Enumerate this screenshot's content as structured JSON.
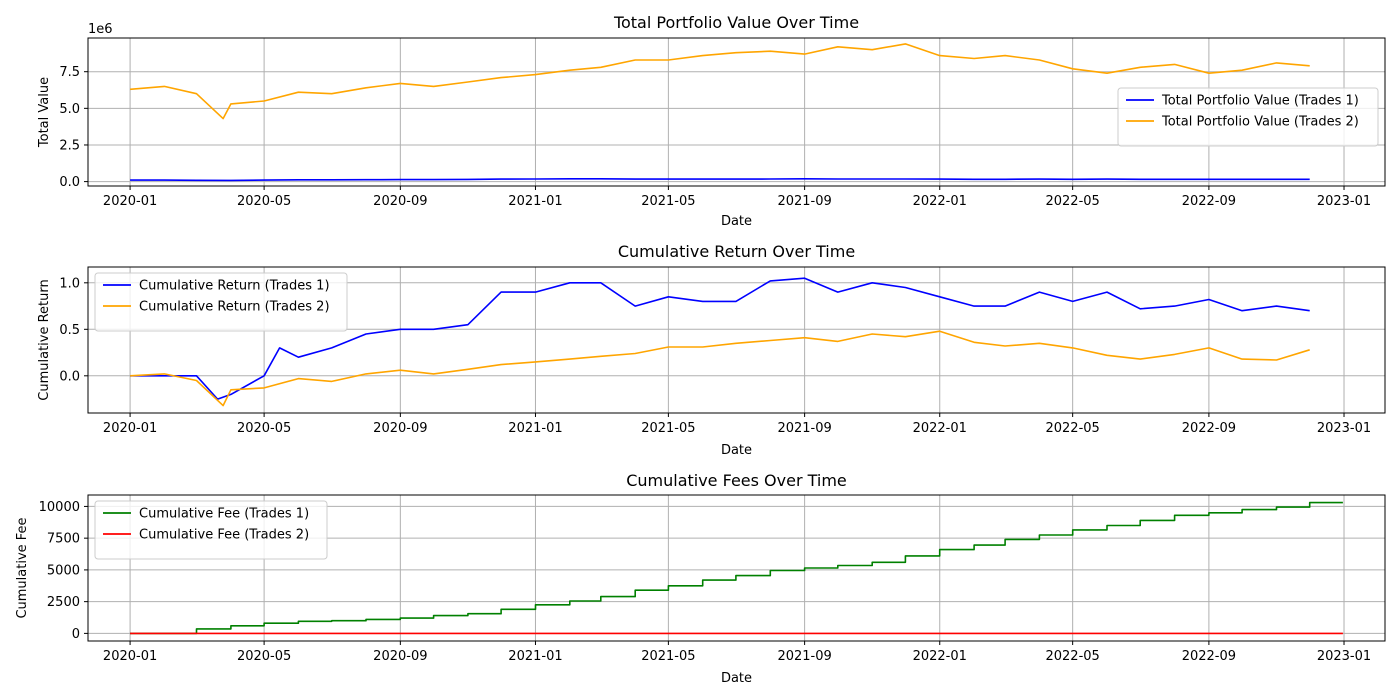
{
  "chart_data": [
    {
      "type": "line",
      "title": "Total Portfolio Value Over Time",
      "xlabel": "Date",
      "ylabel": "Total Value",
      "y_offset_text": "1e6",
      "x_ticks": [
        "2020-01",
        "2020-05",
        "2020-09",
        "2021-01",
        "2021-05",
        "2021-09",
        "2022-01",
        "2022-05",
        "2022-09",
        "2023-01"
      ],
      "y_ticks": [
        0.0,
        2.5,
        5.0,
        7.5
      ],
      "y_tick_labels": [
        "0.0",
        "2.5",
        "5.0",
        "7.5"
      ],
      "ylim": [
        -0.3,
        9.8
      ],
      "grid": true,
      "legend_position": "center-right",
      "series": [
        {
          "name": "Total Portfolio Value (Trades 1)",
          "color": "#0000ff",
          "x": [
            "2020-01",
            "2020-02",
            "2020-03",
            "2020-04",
            "2020-05",
            "2020-06",
            "2020-07",
            "2020-08",
            "2020-09",
            "2020-10",
            "2020-11",
            "2020-12",
            "2021-01",
            "2021-02",
            "2021-03",
            "2021-04",
            "2021-05",
            "2021-06",
            "2021-07",
            "2021-08",
            "2021-09",
            "2021-10",
            "2021-11",
            "2021-12",
            "2022-01",
            "2022-02",
            "2022-03",
            "2022-04",
            "2022-05",
            "2022-06",
            "2022-07",
            "2022-08",
            "2022-09",
            "2022-10",
            "2022-11",
            "2022-12"
          ],
          "y": [
            0.1,
            0.1,
            0.09,
            0.08,
            0.1,
            0.12,
            0.12,
            0.13,
            0.14,
            0.14,
            0.15,
            0.17,
            0.18,
            0.19,
            0.19,
            0.17,
            0.17,
            0.17,
            0.17,
            0.18,
            0.19,
            0.18,
            0.18,
            0.18,
            0.17,
            0.16,
            0.16,
            0.17,
            0.16,
            0.17,
            0.16,
            0.16,
            0.16,
            0.16,
            0.16,
            0.16
          ]
        },
        {
          "name": "Total Portfolio Value (Trades 2)",
          "color": "#ffa500",
          "x": [
            "2020-01",
            "2020-02",
            "2020-03",
            "2020-03-25",
            "2020-04",
            "2020-05",
            "2020-06",
            "2020-07",
            "2020-08",
            "2020-09",
            "2020-10",
            "2020-11",
            "2020-12",
            "2021-01",
            "2021-02",
            "2021-03",
            "2021-04",
            "2021-05",
            "2021-06",
            "2021-07",
            "2021-08",
            "2021-09",
            "2021-10",
            "2021-11",
            "2021-12",
            "2022-01",
            "2022-02",
            "2022-03",
            "2022-04",
            "2022-05",
            "2022-06",
            "2022-07",
            "2022-08",
            "2022-09",
            "2022-10",
            "2022-11",
            "2022-12"
          ],
          "y": [
            6.3,
            6.5,
            6.0,
            4.3,
            5.3,
            5.5,
            6.1,
            6.0,
            6.4,
            6.7,
            6.5,
            6.8,
            7.1,
            7.3,
            7.6,
            7.8,
            8.3,
            8.3,
            8.6,
            8.8,
            8.9,
            8.7,
            9.2,
            9.0,
            9.4,
            8.6,
            8.4,
            8.6,
            8.3,
            7.7,
            7.4,
            7.8,
            8.0,
            7.4,
            7.6,
            8.1,
            7.9
          ]
        }
      ]
    },
    {
      "type": "line",
      "title": "Cumulative Return Over Time",
      "xlabel": "Date",
      "ylabel": "Cumulative Return",
      "x_ticks": [
        "2020-01",
        "2020-05",
        "2020-09",
        "2021-01",
        "2021-05",
        "2021-09",
        "2022-01",
        "2022-05",
        "2022-09",
        "2023-01"
      ],
      "y_ticks": [
        0.0,
        0.5,
        1.0
      ],
      "y_tick_labels": [
        "0.0",
        "0.5",
        "1.0"
      ],
      "ylim": [
        -0.4,
        1.17
      ],
      "grid": true,
      "legend_position": "upper-left",
      "series": [
        {
          "name": "Cumulative Return (Trades 1)",
          "color": "#0000ff",
          "x": [
            "2020-01",
            "2020-02",
            "2020-03",
            "2020-03-20",
            "2020-04",
            "2020-05",
            "2020-05-15",
            "2020-06",
            "2020-07",
            "2020-08",
            "2020-09",
            "2020-10",
            "2020-11",
            "2020-12",
            "2021-01",
            "2021-02",
            "2021-03",
            "2021-04",
            "2021-05",
            "2021-06",
            "2021-07",
            "2021-08",
            "2021-09",
            "2021-10",
            "2021-11",
            "2021-12",
            "2022-01",
            "2022-02",
            "2022-03",
            "2022-04",
            "2022-05",
            "2022-06",
            "2022-07",
            "2022-08",
            "2022-09",
            "2022-10",
            "2022-11",
            "2022-12"
          ],
          "y": [
            0.0,
            0.0,
            0.0,
            -0.25,
            -0.2,
            0.0,
            0.3,
            0.2,
            0.3,
            0.45,
            0.5,
            0.5,
            0.55,
            0.9,
            0.9,
            1.0,
            1.0,
            0.75,
            0.85,
            0.8,
            0.8,
            1.02,
            1.05,
            0.9,
            1.0,
            0.95,
            0.85,
            0.75,
            0.75,
            0.9,
            0.8,
            0.9,
            0.72,
            0.75,
            0.82,
            0.7,
            0.75,
            0.7
          ]
        },
        {
          "name": "Cumulative Return (Trades 2)",
          "color": "#ffa500",
          "x": [
            "2020-01",
            "2020-02",
            "2020-03",
            "2020-03-25",
            "2020-04",
            "2020-05",
            "2020-06",
            "2020-07",
            "2020-08",
            "2020-09",
            "2020-10",
            "2020-11",
            "2020-12",
            "2021-01",
            "2021-02",
            "2021-03",
            "2021-04",
            "2021-05",
            "2021-06",
            "2021-07",
            "2021-08",
            "2021-09",
            "2021-10",
            "2021-11",
            "2021-12",
            "2022-01",
            "2022-02",
            "2022-03",
            "2022-04",
            "2022-05",
            "2022-06",
            "2022-07",
            "2022-08",
            "2022-09",
            "2022-10",
            "2022-11",
            "2022-12"
          ],
          "y": [
            0.0,
            0.02,
            -0.05,
            -0.32,
            -0.15,
            -0.13,
            -0.03,
            -0.06,
            0.02,
            0.06,
            0.02,
            0.07,
            0.12,
            0.15,
            0.18,
            0.21,
            0.24,
            0.31,
            0.31,
            0.35,
            0.38,
            0.41,
            0.37,
            0.45,
            0.42,
            0.48,
            0.36,
            0.32,
            0.35,
            0.3,
            0.22,
            0.18,
            0.23,
            0.3,
            0.18,
            0.17,
            0.28
          ]
        }
      ]
    },
    {
      "type": "line",
      "title": "Cumulative Fees Over Time",
      "xlabel": "Date",
      "ylabel": "Cumulative Fee",
      "x_ticks": [
        "2020-01",
        "2020-05",
        "2020-09",
        "2021-01",
        "2021-05",
        "2021-09",
        "2022-01",
        "2022-05",
        "2022-09",
        "2023-01"
      ],
      "y_ticks": [
        0,
        2500,
        5000,
        7500,
        10000
      ],
      "y_tick_labels": [
        "0",
        "2500",
        "5000",
        "7500",
        "10000"
      ],
      "ylim": [
        -600,
        10900
      ],
      "grid": true,
      "legend_position": "upper-left",
      "series": [
        {
          "name": "Cumulative Fee (Trades 1)",
          "color": "#008000",
          "step": true,
          "x": [
            "2020-01",
            "2020-03",
            "2020-04",
            "2020-05",
            "2020-06",
            "2020-07",
            "2020-08",
            "2020-09",
            "2020-10",
            "2020-11",
            "2020-12",
            "2021-01",
            "2021-02",
            "2021-03",
            "2021-04",
            "2021-05",
            "2021-06",
            "2021-07",
            "2021-08",
            "2021-09",
            "2021-10",
            "2021-11",
            "2021-12",
            "2022-01",
            "2022-02",
            "2022-03",
            "2022-04",
            "2022-05",
            "2022-06",
            "2022-07",
            "2022-08",
            "2022-09",
            "2022-10",
            "2022-11",
            "2022-12",
            "2022-12-31"
          ],
          "y": [
            0,
            350,
            600,
            800,
            950,
            1000,
            1100,
            1200,
            1400,
            1550,
            1900,
            2250,
            2550,
            2900,
            3400,
            3750,
            4200,
            4550,
            4950,
            5150,
            5350,
            5600,
            6100,
            6600,
            6950,
            7400,
            7750,
            8150,
            8500,
            8900,
            9300,
            9500,
            9750,
            9950,
            10300,
            10300
          ]
        },
        {
          "name": "Cumulative Fee (Trades 2)",
          "color": "#ff0000",
          "x": [
            "2020-01",
            "2022-12-31"
          ],
          "y": [
            0,
            0
          ]
        }
      ]
    }
  ]
}
